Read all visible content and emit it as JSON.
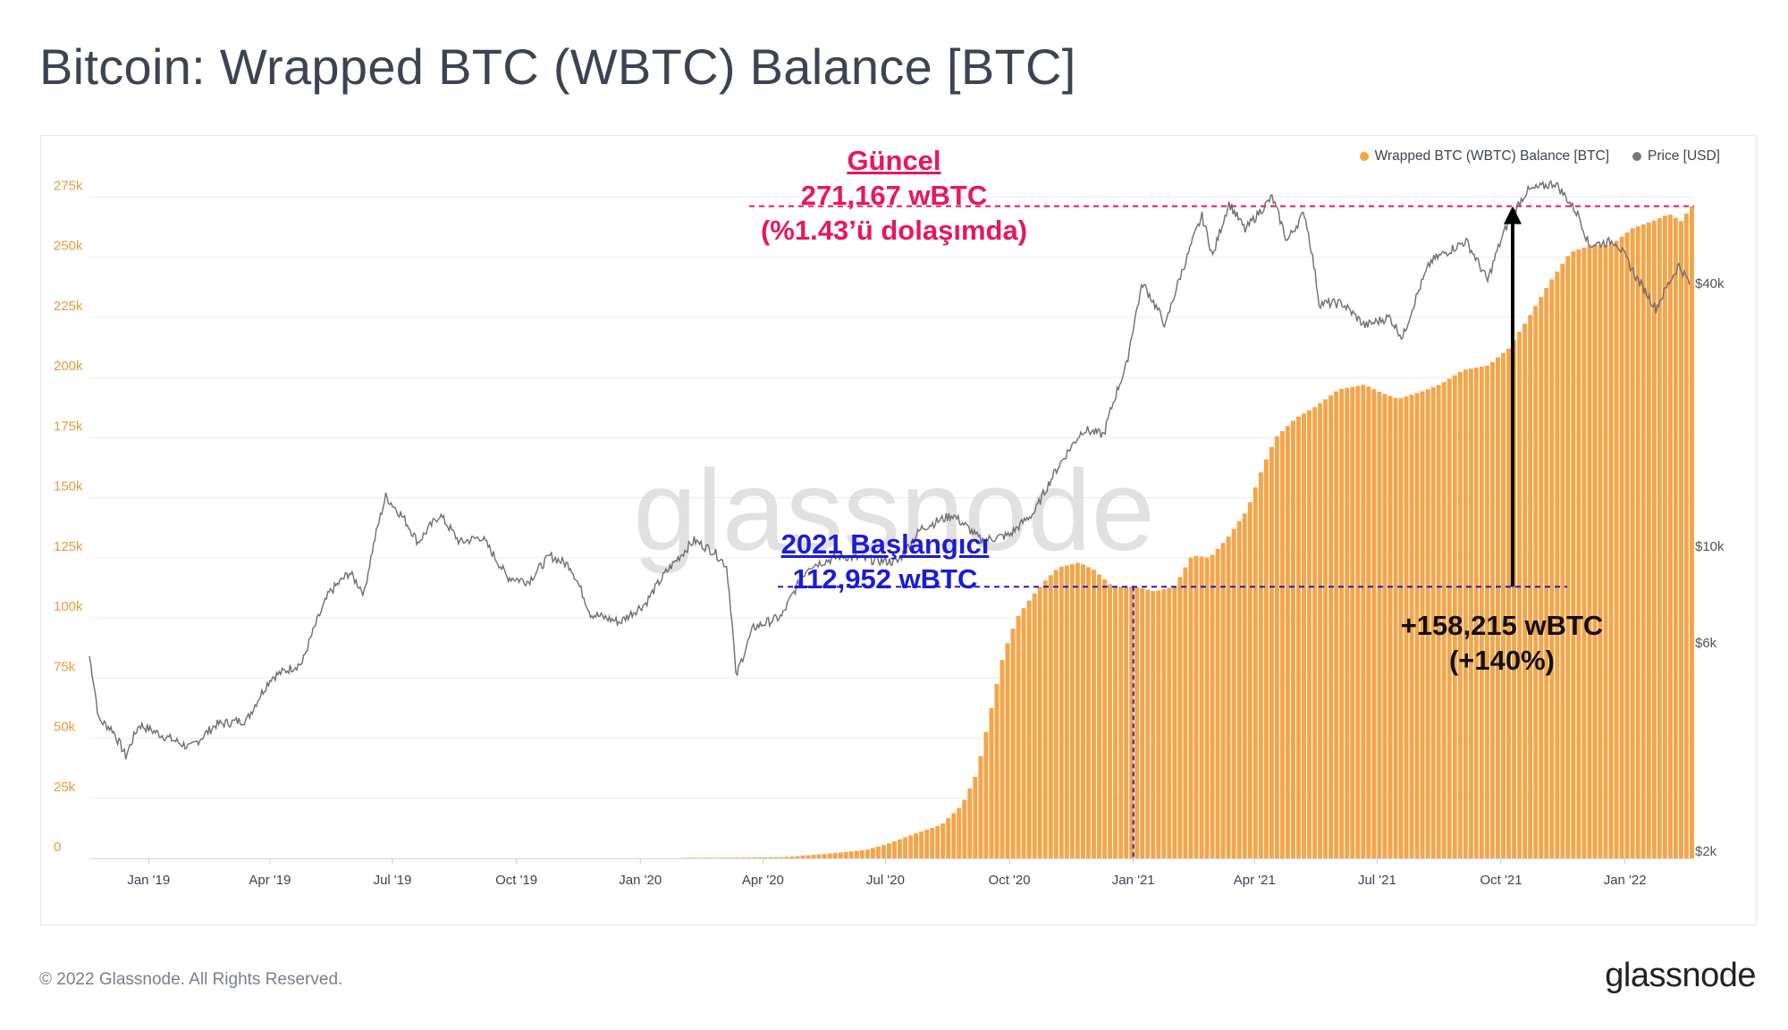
{
  "title": "Bitcoin: Wrapped BTC (WBTC) Balance [BTC]",
  "footer": {
    "copyright": "© 2022 Glassnode. All Rights Reserved.",
    "brand": "glassnode"
  },
  "watermark": "glassnode",
  "colors": {
    "balance": "#f7931a",
    "bar_fill": "#f4a54a",
    "price": "#6e6e6e",
    "current_line": "#e8175d",
    "start_line": "#1b1bd6",
    "arrow": "#000000"
  },
  "legend": [
    {
      "label": "Wrapped BTC (WBTC) Balance [BTC]",
      "color": "#f5a442"
    },
    {
      "label": "Price [USD]",
      "color": "#777777"
    }
  ],
  "annotations": {
    "current": {
      "line1": "Güncel",
      "line2": "271,167 wBTC",
      "line3": "(%1.43’ü dolaşımda)"
    },
    "start": {
      "line1": "2021 Başlangıcı",
      "line2": "112,952 wBTC"
    },
    "delta": {
      "line1": "+158,215 wBTC",
      "line2": "(+140%)"
    }
  },
  "chart_data": {
    "type": "bar",
    "title": "Bitcoin: Wrapped BTC (WBTC) Balance [BTC]",
    "x_range": [
      "2018-11-18",
      "2022-02-20"
    ],
    "x_ticks": [
      "Jan '19",
      "Apr '19",
      "Jul '19",
      "Oct '19",
      "Jan '20",
      "Apr '20",
      "Jul '20",
      "Oct '20",
      "Jan '21",
      "Apr '21",
      "Jul '21",
      "Oct '21",
      "Jan '22"
    ],
    "y_left": {
      "ticks": [
        "0",
        "25k",
        "50k",
        "75k",
        "100k",
        "125k",
        "150k",
        "175k",
        "200k",
        "225k",
        "250k",
        "275k"
      ],
      "ylim": [
        0,
        290000
      ]
    },
    "y_right": {
      "ticks": [
        "$2k",
        "$6k",
        "$10k",
        "$40k"
      ],
      "scale": "log"
    },
    "series": [
      {
        "name": "Wrapped BTC (WBTC) Balance [BTC]",
        "type": "bar",
        "points": [
          [
            "2020-02-01",
            0
          ],
          [
            "2020-04-15",
            500
          ],
          [
            "2020-05-15",
            1800
          ],
          [
            "2020-06-15",
            3500
          ],
          [
            "2020-07-01",
            6000
          ],
          [
            "2020-07-20",
            10000
          ],
          [
            "2020-08-10",
            14000
          ],
          [
            "2020-08-25",
            22000
          ],
          [
            "2020-09-05",
            35000
          ],
          [
            "2020-09-15",
            60000
          ],
          [
            "2020-09-25",
            85000
          ],
          [
            "2020-10-05",
            100000
          ],
          [
            "2020-10-15",
            108000
          ],
          [
            "2020-10-25",
            115000
          ],
          [
            "2020-11-05",
            121000
          ],
          [
            "2020-11-20",
            123000
          ],
          [
            "2020-12-01",
            120000
          ],
          [
            "2020-12-15",
            113000
          ],
          [
            "2021-01-01",
            112952
          ],
          [
            "2021-01-15",
            111000
          ],
          [
            "2021-01-30",
            113000
          ],
          [
            "2021-02-12",
            126000
          ],
          [
            "2021-02-25",
            125000
          ],
          [
            "2021-03-10",
            133000
          ],
          [
            "2021-03-25",
            145000
          ],
          [
            "2021-04-05",
            162000
          ],
          [
            "2021-04-15",
            175000
          ],
          [
            "2021-04-30",
            183000
          ],
          [
            "2021-05-15",
            188000
          ],
          [
            "2021-06-01",
            195000
          ],
          [
            "2021-06-20",
            197000
          ],
          [
            "2021-07-01",
            194000
          ],
          [
            "2021-07-15",
            191000
          ],
          [
            "2021-08-01",
            194000
          ],
          [
            "2021-08-15",
            197000
          ],
          [
            "2021-09-01",
            203000
          ],
          [
            "2021-09-20",
            205000
          ],
          [
            "2021-10-05",
            212000
          ],
          [
            "2021-10-20",
            225000
          ],
          [
            "2021-11-05",
            240000
          ],
          [
            "2021-11-20",
            252000
          ],
          [
            "2021-12-05",
            255000
          ],
          [
            "2021-12-20",
            255000
          ],
          [
            "2022-01-05",
            262000
          ],
          [
            "2022-01-20",
            265000
          ],
          [
            "2022-02-01",
            268000
          ],
          [
            "2022-02-10",
            265000
          ],
          [
            "2022-02-18",
            271167
          ]
        ]
      },
      {
        "name": "Price [USD]",
        "type": "line",
        "scale": "log",
        "points": [
          [
            "2018-11-18",
            5600
          ],
          [
            "2018-11-25",
            4000
          ],
          [
            "2018-12-05",
            3800
          ],
          [
            "2018-12-15",
            3300
          ],
          [
            "2018-12-25",
            3900
          ],
          [
            "2019-01-10",
            3700
          ],
          [
            "2019-02-01",
            3450
          ],
          [
            "2019-02-20",
            3900
          ],
          [
            "2019-03-15",
            4000
          ],
          [
            "2019-04-02",
            5000
          ],
          [
            "2019-04-25",
            5400
          ],
          [
            "2019-05-15",
            7800
          ],
          [
            "2019-05-30",
            8700
          ],
          [
            "2019-06-10",
            7800
          ],
          [
            "2019-06-26",
            13000
          ],
          [
            "2019-07-10",
            11500
          ],
          [
            "2019-07-20",
            10200
          ],
          [
            "2019-08-05",
            11800
          ],
          [
            "2019-08-20",
            10200
          ],
          [
            "2019-09-05",
            10500
          ],
          [
            "2019-09-24",
            8500
          ],
          [
            "2019-10-10",
            8300
          ],
          [
            "2019-10-26",
            9500
          ],
          [
            "2019-11-10",
            9000
          ],
          [
            "2019-11-25",
            7000
          ],
          [
            "2019-12-17",
            6700
          ],
          [
            "2020-01-05",
            7400
          ],
          [
            "2020-01-20",
            8700
          ],
          [
            "2020-02-10",
            10300
          ],
          [
            "2020-02-25",
            9700
          ],
          [
            "2020-03-05",
            9000
          ],
          [
            "2020-03-12",
            5000
          ],
          [
            "2020-03-25",
            6500
          ],
          [
            "2020-04-15",
            6900
          ],
          [
            "2020-05-05",
            9000
          ],
          [
            "2020-05-30",
            9500
          ],
          [
            "2020-06-20",
            9300
          ],
          [
            "2020-07-10",
            9200
          ],
          [
            "2020-07-28",
            11000
          ],
          [
            "2020-08-20",
            11800
          ],
          [
            "2020-09-10",
            10300
          ],
          [
            "2020-10-01",
            10600
          ],
          [
            "2020-10-20",
            12000
          ],
          [
            "2020-11-05",
            15000
          ],
          [
            "2020-11-25",
            18500
          ],
          [
            "2020-12-10",
            18000
          ],
          [
            "2020-12-27",
            26000
          ],
          [
            "2021-01-08",
            40000
          ],
          [
            "2021-01-25",
            32000
          ],
          [
            "2021-02-10",
            46000
          ],
          [
            "2021-02-21",
            57000
          ],
          [
            "2021-03-01",
            46000
          ],
          [
            "2021-03-13",
            61000
          ],
          [
            "2021-03-25",
            53000
          ],
          [
            "2021-04-14",
            63000
          ],
          [
            "2021-04-25",
            50000
          ],
          [
            "2021-05-08",
            58000
          ],
          [
            "2021-05-19",
            36000
          ],
          [
            "2021-06-05",
            36000
          ],
          [
            "2021-06-22",
            32000
          ],
          [
            "2021-07-10",
            33500
          ],
          [
            "2021-07-20",
            30000
          ],
          [
            "2021-08-10",
            45000
          ],
          [
            "2021-09-05",
            50000
          ],
          [
            "2021-09-21",
            40500
          ],
          [
            "2021-10-06",
            55000
          ],
          [
            "2021-10-20",
            65000
          ],
          [
            "2021-11-10",
            68000
          ],
          [
            "2021-11-28",
            57000
          ],
          [
            "2021-12-05",
            49000
          ],
          [
            "2021-12-25",
            50000
          ],
          [
            "2022-01-10",
            41000
          ],
          [
            "2022-01-24",
            35000
          ],
          [
            "2022-02-10",
            44000
          ],
          [
            "2022-02-18",
            40000
          ]
        ]
      }
    ],
    "reference_lines": [
      {
        "label": "Güncel",
        "value": 271167
      },
      {
        "label": "2021 Başlangıcı",
        "value": 112952,
        "date": "2021-01-01"
      }
    ],
    "grid": true,
    "legend_position": "top-right"
  }
}
